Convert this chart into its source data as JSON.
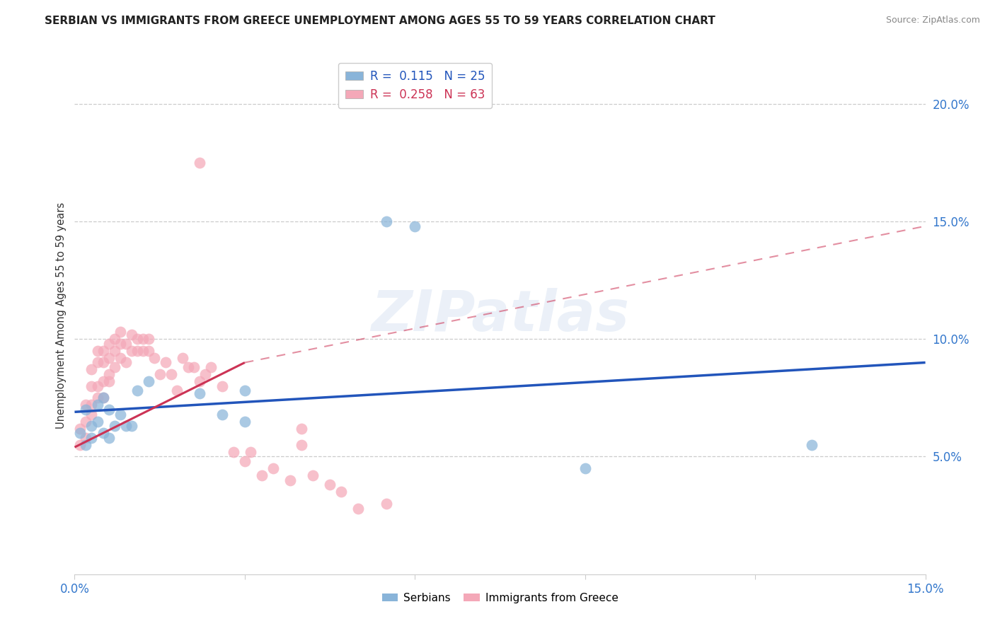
{
  "title": "SERBIAN VS IMMIGRANTS FROM GREECE UNEMPLOYMENT AMONG AGES 55 TO 59 YEARS CORRELATION CHART",
  "source": "Source: ZipAtlas.com",
  "ylabel": "Unemployment Among Ages 55 to 59 years",
  "xlim": [
    0.0,
    0.15
  ],
  "ylim": [
    0.0,
    0.22
  ],
  "xticks": [
    0.0,
    0.03,
    0.06,
    0.09,
    0.12,
    0.15
  ],
  "yticks": [
    0.05,
    0.1,
    0.15,
    0.2
  ],
  "blue_R": "0.115",
  "blue_N": "25",
  "pink_R": "0.258",
  "pink_N": "63",
  "blue_color": "#89b4d9",
  "pink_color": "#f4a8b8",
  "blue_line_color": "#2255bb",
  "pink_line_color": "#cc3355",
  "axis_label_color": "#3377cc",
  "watermark_text": "ZIPatlas",
  "serbians_x": [
    0.001,
    0.002,
    0.002,
    0.003,
    0.003,
    0.004,
    0.004,
    0.005,
    0.005,
    0.006,
    0.006,
    0.007,
    0.008,
    0.009,
    0.01,
    0.011,
    0.013,
    0.022,
    0.026,
    0.03,
    0.03,
    0.055,
    0.06,
    0.13,
    0.09
  ],
  "serbians_y": [
    0.06,
    0.055,
    0.07,
    0.063,
    0.058,
    0.065,
    0.072,
    0.06,
    0.075,
    0.058,
    0.07,
    0.063,
    0.068,
    0.063,
    0.063,
    0.078,
    0.082,
    0.077,
    0.068,
    0.065,
    0.078,
    0.15,
    0.148,
    0.055,
    0.045
  ],
  "greece_x": [
    0.001,
    0.001,
    0.002,
    0.002,
    0.002,
    0.003,
    0.003,
    0.003,
    0.003,
    0.004,
    0.004,
    0.004,
    0.004,
    0.005,
    0.005,
    0.005,
    0.005,
    0.006,
    0.006,
    0.006,
    0.006,
    0.007,
    0.007,
    0.007,
    0.008,
    0.008,
    0.008,
    0.009,
    0.009,
    0.01,
    0.01,
    0.011,
    0.011,
    0.012,
    0.012,
    0.013,
    0.013,
    0.014,
    0.015,
    0.016,
    0.017,
    0.018,
    0.019,
    0.02,
    0.021,
    0.022,
    0.023,
    0.024,
    0.026,
    0.028,
    0.03,
    0.031,
    0.033,
    0.035,
    0.038,
    0.04,
    0.04,
    0.042,
    0.045,
    0.047,
    0.05,
    0.055,
    0.022
  ],
  "greece_y": [
    0.062,
    0.055,
    0.058,
    0.065,
    0.072,
    0.068,
    0.072,
    0.08,
    0.087,
    0.075,
    0.08,
    0.09,
    0.095,
    0.075,
    0.082,
    0.09,
    0.095,
    0.085,
    0.082,
    0.092,
    0.098,
    0.088,
    0.095,
    0.1,
    0.092,
    0.098,
    0.103,
    0.09,
    0.098,
    0.095,
    0.102,
    0.095,
    0.1,
    0.095,
    0.1,
    0.095,
    0.1,
    0.092,
    0.085,
    0.09,
    0.085,
    0.078,
    0.092,
    0.088,
    0.088,
    0.082,
    0.085,
    0.088,
    0.08,
    0.052,
    0.048,
    0.052,
    0.042,
    0.045,
    0.04,
    0.055,
    0.062,
    0.042,
    0.038,
    0.035,
    0.028,
    0.03,
    0.175
  ],
  "blue_line_x0": 0.0,
  "blue_line_y0": 0.069,
  "blue_line_x1": 0.15,
  "blue_line_y1": 0.09,
  "pink_line_solid_x0": 0.0,
  "pink_line_solid_y0": 0.054,
  "pink_line_solid_x1": 0.03,
  "pink_line_solid_y1": 0.09,
  "pink_line_dash_x1": 0.15,
  "pink_line_dash_y1": 0.148
}
